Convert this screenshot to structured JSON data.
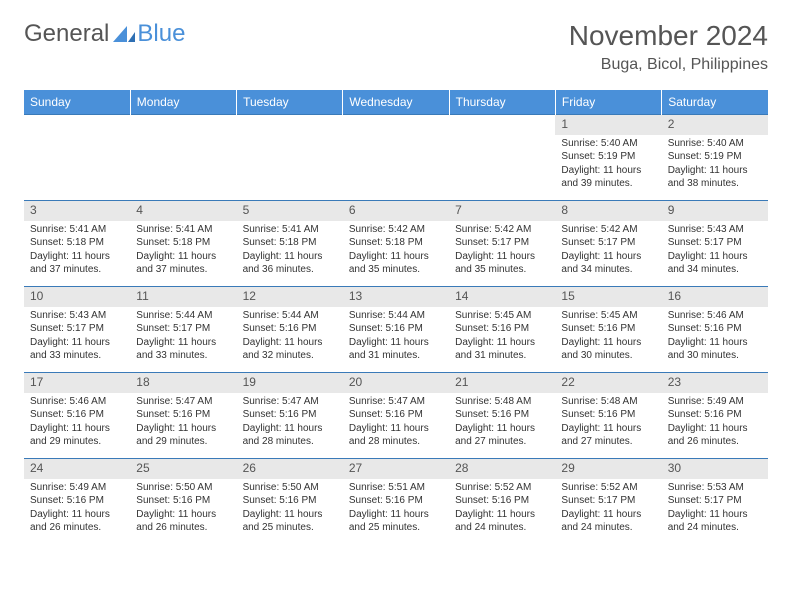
{
  "logo": {
    "text1": "General",
    "text2": "Blue"
  },
  "title": "November 2024",
  "location": "Buga, Bicol, Philippines",
  "colors": {
    "header_bg": "#4a90d9",
    "header_text": "#ffffff",
    "daynum_bg": "#e8e8e8",
    "border": "#3a7ab8",
    "text": "#333333",
    "title_color": "#555555"
  },
  "weekdays": [
    "Sunday",
    "Monday",
    "Tuesday",
    "Wednesday",
    "Thursday",
    "Friday",
    "Saturday"
  ],
  "grid": {
    "first_weekday_index": 5,
    "days_in_month": 30
  },
  "days": {
    "1": {
      "sunrise": "5:40 AM",
      "sunset": "5:19 PM",
      "daylight": "11 hours and 39 minutes."
    },
    "2": {
      "sunrise": "5:40 AM",
      "sunset": "5:19 PM",
      "daylight": "11 hours and 38 minutes."
    },
    "3": {
      "sunrise": "5:41 AM",
      "sunset": "5:18 PM",
      "daylight": "11 hours and 37 minutes."
    },
    "4": {
      "sunrise": "5:41 AM",
      "sunset": "5:18 PM",
      "daylight": "11 hours and 37 minutes."
    },
    "5": {
      "sunrise": "5:41 AM",
      "sunset": "5:18 PM",
      "daylight": "11 hours and 36 minutes."
    },
    "6": {
      "sunrise": "5:42 AM",
      "sunset": "5:18 PM",
      "daylight": "11 hours and 35 minutes."
    },
    "7": {
      "sunrise": "5:42 AM",
      "sunset": "5:17 PM",
      "daylight": "11 hours and 35 minutes."
    },
    "8": {
      "sunrise": "5:42 AM",
      "sunset": "5:17 PM",
      "daylight": "11 hours and 34 minutes."
    },
    "9": {
      "sunrise": "5:43 AM",
      "sunset": "5:17 PM",
      "daylight": "11 hours and 34 minutes."
    },
    "10": {
      "sunrise": "5:43 AM",
      "sunset": "5:17 PM",
      "daylight": "11 hours and 33 minutes."
    },
    "11": {
      "sunrise": "5:44 AM",
      "sunset": "5:17 PM",
      "daylight": "11 hours and 33 minutes."
    },
    "12": {
      "sunrise": "5:44 AM",
      "sunset": "5:16 PM",
      "daylight": "11 hours and 32 minutes."
    },
    "13": {
      "sunrise": "5:44 AM",
      "sunset": "5:16 PM",
      "daylight": "11 hours and 31 minutes."
    },
    "14": {
      "sunrise": "5:45 AM",
      "sunset": "5:16 PM",
      "daylight": "11 hours and 31 minutes."
    },
    "15": {
      "sunrise": "5:45 AM",
      "sunset": "5:16 PM",
      "daylight": "11 hours and 30 minutes."
    },
    "16": {
      "sunrise": "5:46 AM",
      "sunset": "5:16 PM",
      "daylight": "11 hours and 30 minutes."
    },
    "17": {
      "sunrise": "5:46 AM",
      "sunset": "5:16 PM",
      "daylight": "11 hours and 29 minutes."
    },
    "18": {
      "sunrise": "5:47 AM",
      "sunset": "5:16 PM",
      "daylight": "11 hours and 29 minutes."
    },
    "19": {
      "sunrise": "5:47 AM",
      "sunset": "5:16 PM",
      "daylight": "11 hours and 28 minutes."
    },
    "20": {
      "sunrise": "5:47 AM",
      "sunset": "5:16 PM",
      "daylight": "11 hours and 28 minutes."
    },
    "21": {
      "sunrise": "5:48 AM",
      "sunset": "5:16 PM",
      "daylight": "11 hours and 27 minutes."
    },
    "22": {
      "sunrise": "5:48 AM",
      "sunset": "5:16 PM",
      "daylight": "11 hours and 27 minutes."
    },
    "23": {
      "sunrise": "5:49 AM",
      "sunset": "5:16 PM",
      "daylight": "11 hours and 26 minutes."
    },
    "24": {
      "sunrise": "5:49 AM",
      "sunset": "5:16 PM",
      "daylight": "11 hours and 26 minutes."
    },
    "25": {
      "sunrise": "5:50 AM",
      "sunset": "5:16 PM",
      "daylight": "11 hours and 26 minutes."
    },
    "26": {
      "sunrise": "5:50 AM",
      "sunset": "5:16 PM",
      "daylight": "11 hours and 25 minutes."
    },
    "27": {
      "sunrise": "5:51 AM",
      "sunset": "5:16 PM",
      "daylight": "11 hours and 25 minutes."
    },
    "28": {
      "sunrise": "5:52 AM",
      "sunset": "5:16 PM",
      "daylight": "11 hours and 24 minutes."
    },
    "29": {
      "sunrise": "5:52 AM",
      "sunset": "5:17 PM",
      "daylight": "11 hours and 24 minutes."
    },
    "30": {
      "sunrise": "5:53 AM",
      "sunset": "5:17 PM",
      "daylight": "11 hours and 24 minutes."
    }
  },
  "labels": {
    "sunrise_prefix": "Sunrise: ",
    "sunset_prefix": "Sunset: ",
    "daylight_prefix": "Daylight: "
  }
}
